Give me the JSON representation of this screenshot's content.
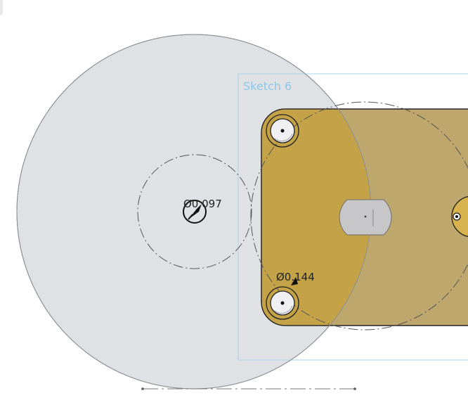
{
  "sketch": {
    "name": "Sketch 6"
  },
  "dimensions": {
    "inner_diameter": "Ø0.097",
    "hole_diameter": "Ø0.144"
  },
  "colors": {
    "gray_disc": "#dfe1e5",
    "gray_disc_stroke": "#8a8e94",
    "part_face": "#c4a247",
    "part_overlap": "#b9a265",
    "part_stroke": "#1f1f1f",
    "sketch_frame": "#a9d3ec",
    "construction_line": "#555555"
  },
  "icons": {
    "compass": "compass-icon"
  }
}
